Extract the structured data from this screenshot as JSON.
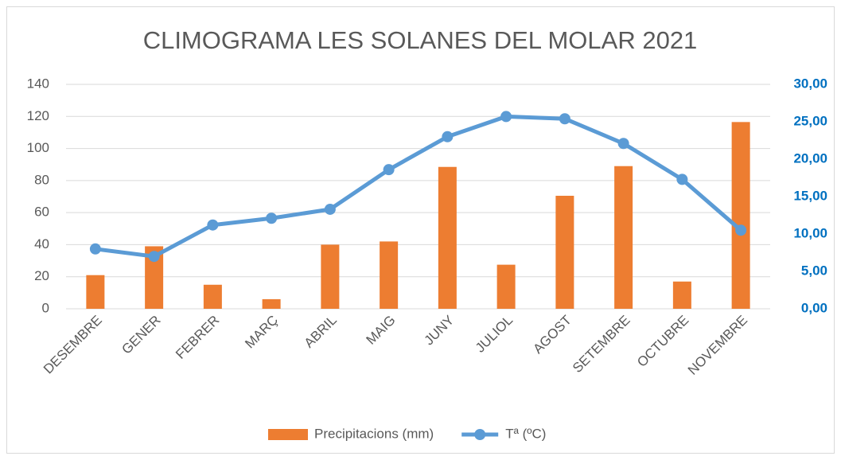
{
  "chart_data": {
    "type": "bar",
    "title": "CLIMOGRAMA LES SOLANES DEL MOLAR 2021",
    "categories": [
      "DESEMBRE",
      "GENER",
      "FEBRER",
      "MARÇ",
      "ABRIL",
      "MAIG",
      "JUNY",
      "JULIOL",
      "AGOST",
      "SETEMBRE",
      "OCTUBRE",
      "NOVEMBRE"
    ],
    "series": [
      {
        "name": "Precipitacions (mm)",
        "type": "bar",
        "color": "#ed7d31",
        "axis": "y",
        "values": [
          21,
          39,
          15,
          6,
          40,
          42,
          88.5,
          27.5,
          70.5,
          89,
          17,
          116.5
        ]
      },
      {
        "name": "Tª (ºC)",
        "type": "line",
        "color": "#5b9bd5",
        "axis": "y2",
        "values": [
          8.0,
          7.0,
          11.2,
          12.1,
          13.3,
          18.6,
          23.0,
          25.7,
          25.4,
          22.1,
          17.3,
          10.5
        ]
      }
    ],
    "ylim": [
      0,
      140
    ],
    "yticks": [
      0,
      20,
      40,
      60,
      80,
      100,
      120,
      140
    ],
    "y2lim": [
      0,
      30
    ],
    "y2ticks": [
      {
        "value": 0,
        "label": "0,00"
      },
      {
        "value": 5,
        "label": "5,00"
      },
      {
        "value": 10,
        "label": "10,00"
      },
      {
        "value": 15,
        "label": "15,00"
      },
      {
        "value": 20,
        "label": "20,00"
      },
      {
        "value": 25,
        "label": "25,00"
      },
      {
        "value": 30,
        "label": "30,00"
      }
    ],
    "grid": true,
    "legend": "bottom"
  }
}
